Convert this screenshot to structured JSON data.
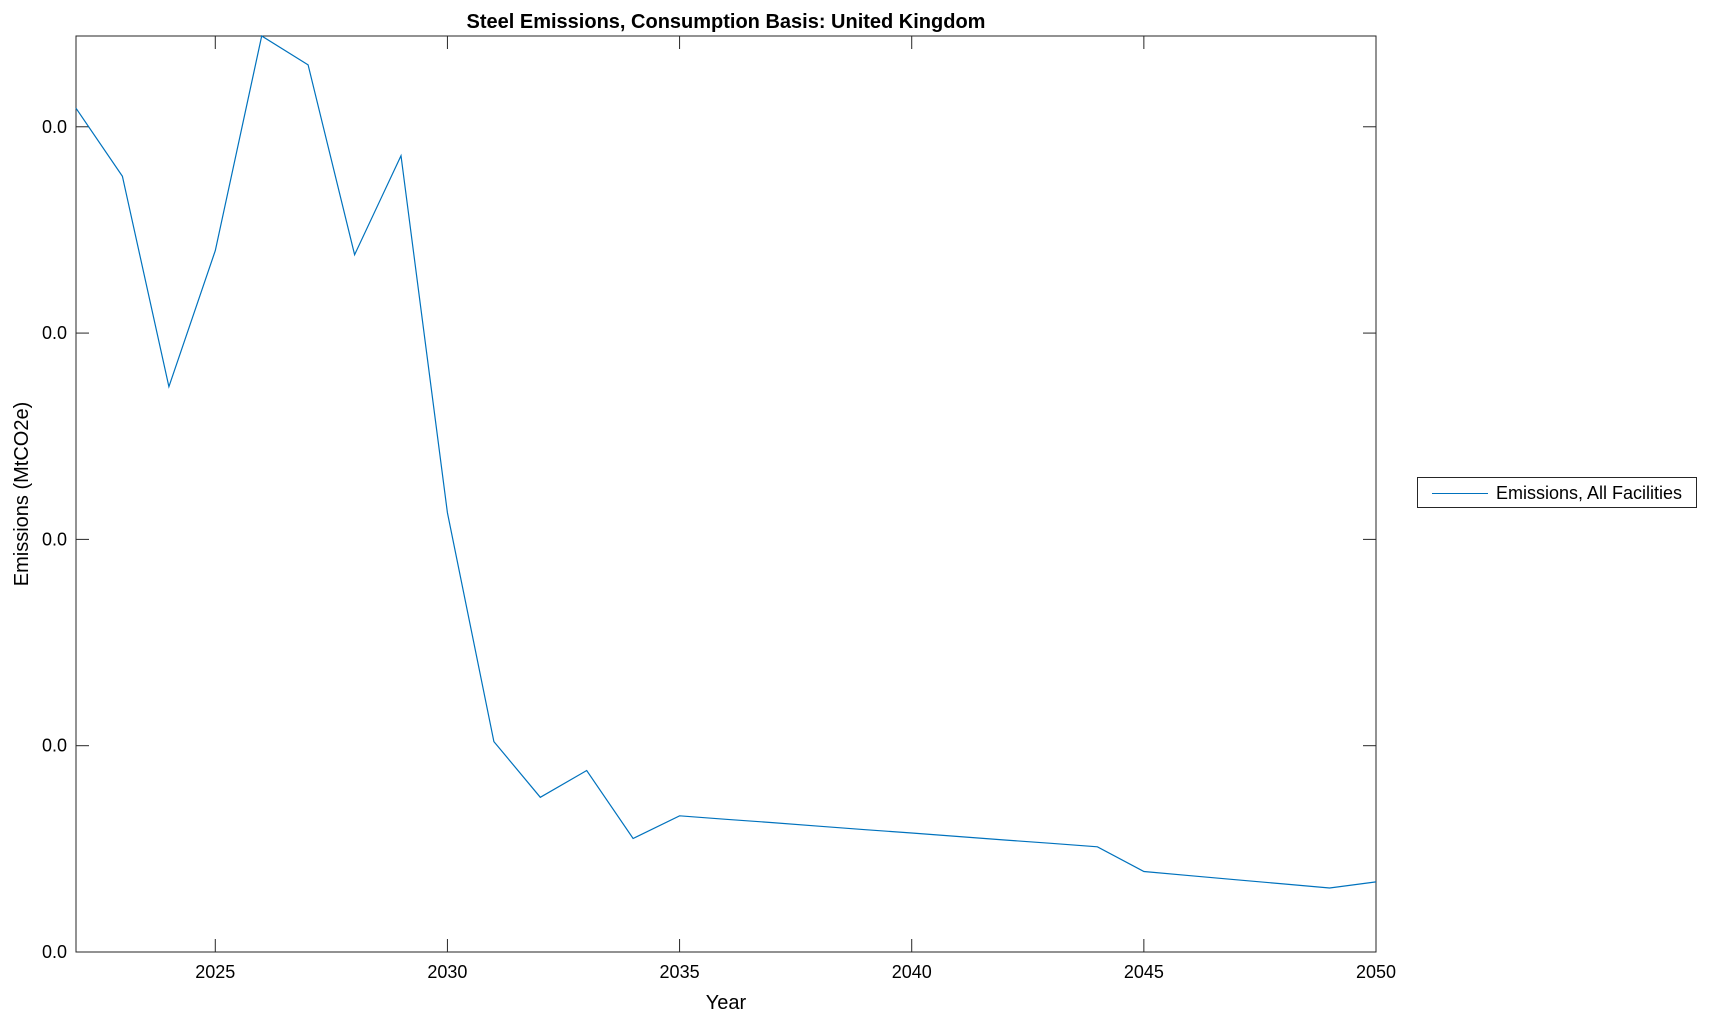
{
  "chart_data": {
    "type": "line",
    "title": "Steel Emissions, Consumption Basis: United Kingdom",
    "xlabel": "Year",
    "ylabel": "Emissions (MtCO2e)",
    "xlim": [
      2022,
      2050
    ],
    "ylim": [
      0,
      0.0444
    ],
    "xticks": [
      2025,
      2030,
      2035,
      2040,
      2045,
      2050
    ],
    "xtick_labels": [
      "2025",
      "2030",
      "2035",
      "2040",
      "2045",
      "2050"
    ],
    "yticks": [
      0,
      0.01,
      0.02,
      0.03,
      0.04
    ],
    "ytick_labels": [
      "0.0",
      "0.0",
      "0.0",
      "0.0",
      "0.0"
    ],
    "grid": false,
    "legend_placement": "outside-right",
    "series": [
      {
        "name": "Emissions, All Facilities",
        "color": "#0072BD",
        "x": [
          2022,
          2023,
          2024,
          2025,
          2026,
          2027,
          2028,
          2029,
          2030,
          2031,
          2032,
          2033,
          2034,
          2035,
          2036,
          2037,
          2038,
          2039,
          2040,
          2041,
          2042,
          2043,
          2044,
          2045,
          2046,
          2047,
          2048,
          2049,
          2050
        ],
        "y": [
          0.0409,
          0.0376,
          0.0274,
          0.034,
          0.0444,
          0.043,
          0.0338,
          0.0386,
          0.0213,
          0.0102,
          0.0075,
          0.0088,
          0.0055,
          0.0066,
          0.00643,
          0.00627,
          0.0061,
          0.00593,
          0.00577,
          0.0056,
          0.00543,
          0.00527,
          0.0051,
          0.0039,
          0.0037,
          0.0035,
          0.0033,
          0.0031,
          0.0034
        ]
      }
    ]
  }
}
